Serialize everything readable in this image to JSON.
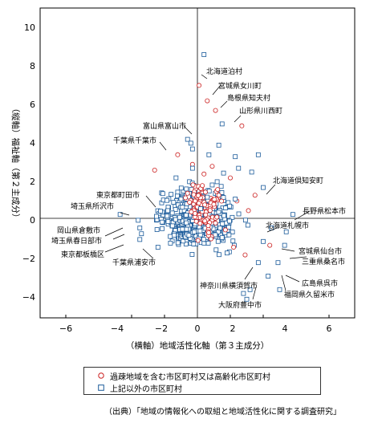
{
  "chart_data": {
    "type": "scatter",
    "xlabel": "（横軸）地域活性化軸（第３主成分）",
    "ylabel": "（縦軸）福祉軸（第２主成分）",
    "xlim": [
      -7,
      7
    ],
    "ylim": [
      -5.2,
      11
    ],
    "xticks": [
      "−6",
      "−4",
      "−2",
      "0",
      "2",
      "4",
      "6"
    ],
    "xtick_values": [
      -6,
      -4,
      -2,
      0,
      2,
      4,
      6
    ],
    "yticks": [
      "−4",
      "−2",
      "0",
      "2",
      "4",
      "6",
      "8",
      "10"
    ],
    "ytick_values": [
      -4,
      -2,
      0,
      2,
      4,
      6,
      8,
      10
    ],
    "grid": false,
    "legend_position": "bottom",
    "series": [
      {
        "name": "過疎地域を含む市区町村又は高齢化市区町村",
        "marker": "circle",
        "color": "#cc2222",
        "points": [
          [
            0.1,
            6.9
          ],
          [
            0.6,
            6.1
          ],
          [
            1.1,
            5.6
          ],
          [
            2.7,
            4.8
          ],
          [
            3.5,
            1.2
          ],
          [
            0.9,
            2.7
          ],
          [
            -1.2,
            3.3
          ],
          [
            -0.3,
            2.8
          ],
          [
            0.4,
            2.3
          ],
          [
            2.0,
            2.1
          ],
          [
            -2.6,
            2.5
          ],
          [
            -0.6,
            1.3
          ],
          [
            0.3,
            1.7
          ],
          [
            1.3,
            1.2
          ],
          [
            2.4,
            0.9
          ],
          [
            3.1,
            0.4
          ],
          [
            4.4,
            -1.4
          ],
          [
            2.9,
            -1.9
          ],
          [
            1.7,
            -0.6
          ],
          [
            2.2,
            -1.5
          ]
        ]
      },
      {
        "name": "上記以外の市区町村",
        "marker": "square",
        "color": "#1a5a9a",
        "points": [
          [
            0.4,
            8.5
          ],
          [
            1.5,
            4.9
          ],
          [
            -0.6,
            4.1
          ],
          [
            -0.3,
            3.6
          ],
          [
            -1.3,
            2.1
          ],
          [
            -4.7,
            0.2
          ],
          [
            -3.6,
            -0.1
          ],
          [
            -3.5,
            -0.5
          ],
          [
            -3.4,
            -0.8
          ],
          [
            -3.5,
            -1.1
          ],
          [
            -2.4,
            -1.5
          ],
          [
            2.8,
            -3.9
          ],
          [
            3.0,
            -4.2
          ],
          [
            3.2,
            -3.7
          ],
          [
            4.3,
            -3.0
          ],
          [
            5.0,
            -3.7
          ],
          [
            3.7,
            -2.3
          ],
          [
            4.9,
            -2.3
          ],
          [
            1.8,
            -1.8
          ],
          [
            5.3,
            -1.4
          ],
          [
            1.5,
            -1.0
          ],
          [
            5.4,
            -0.7
          ],
          [
            4.5,
            -0.5
          ],
          [
            4.0,
            -1.2
          ],
          [
            5.8,
            0.2
          ],
          [
            -0.3,
            2.6
          ],
          [
            0.7,
            3.3
          ],
          [
            1.2,
            1.9
          ],
          [
            -1.0,
            1.0
          ],
          [
            0.2,
            0.5
          ],
          [
            3.3,
            2.4
          ],
          [
            0.6,
            1.1
          ],
          [
            2.3,
            3.2
          ],
          [
            -0.4,
            3.9
          ],
          [
            1.3,
            3.8
          ],
          [
            3.7,
            3.3
          ],
          [
            2.5,
            2.6
          ],
          [
            4.0,
            1.6
          ],
          [
            -1.8,
            0.4
          ],
          [
            2.3,
            1.0
          ]
        ]
      }
    ],
    "annotations": [
      {
        "text": "北海道泊村"
      },
      {
        "text": "宮城県女川町"
      },
      {
        "text": "島根県知夫村"
      },
      {
        "text": "山形県川西町"
      },
      {
        "text": "富山県富山市"
      },
      {
        "text": "千葉県千葉市"
      },
      {
        "text": "北海道倶知安町"
      },
      {
        "text": "東京都町田市"
      },
      {
        "text": "埼玉県所沢市"
      },
      {
        "text": "岡山県倉敷市"
      },
      {
        "text": "埼玉県春日部市"
      },
      {
        "text": "東京都板橋区"
      },
      {
        "text": "千葉県浦安市"
      },
      {
        "text": "長野県松本市"
      },
      {
        "text": "北海道札幌市"
      },
      {
        "text": "宮城県仙台市"
      },
      {
        "text": "三重県桑名市"
      },
      {
        "text": "広島県呉市"
      },
      {
        "text": "福岡県久留米市"
      },
      {
        "text": "神奈川県横須賀市"
      },
      {
        "text": "大阪府豊中市"
      }
    ]
  },
  "source_text": "（出典）「地域の情報化への取組と地域活性化に関する調査研究」"
}
